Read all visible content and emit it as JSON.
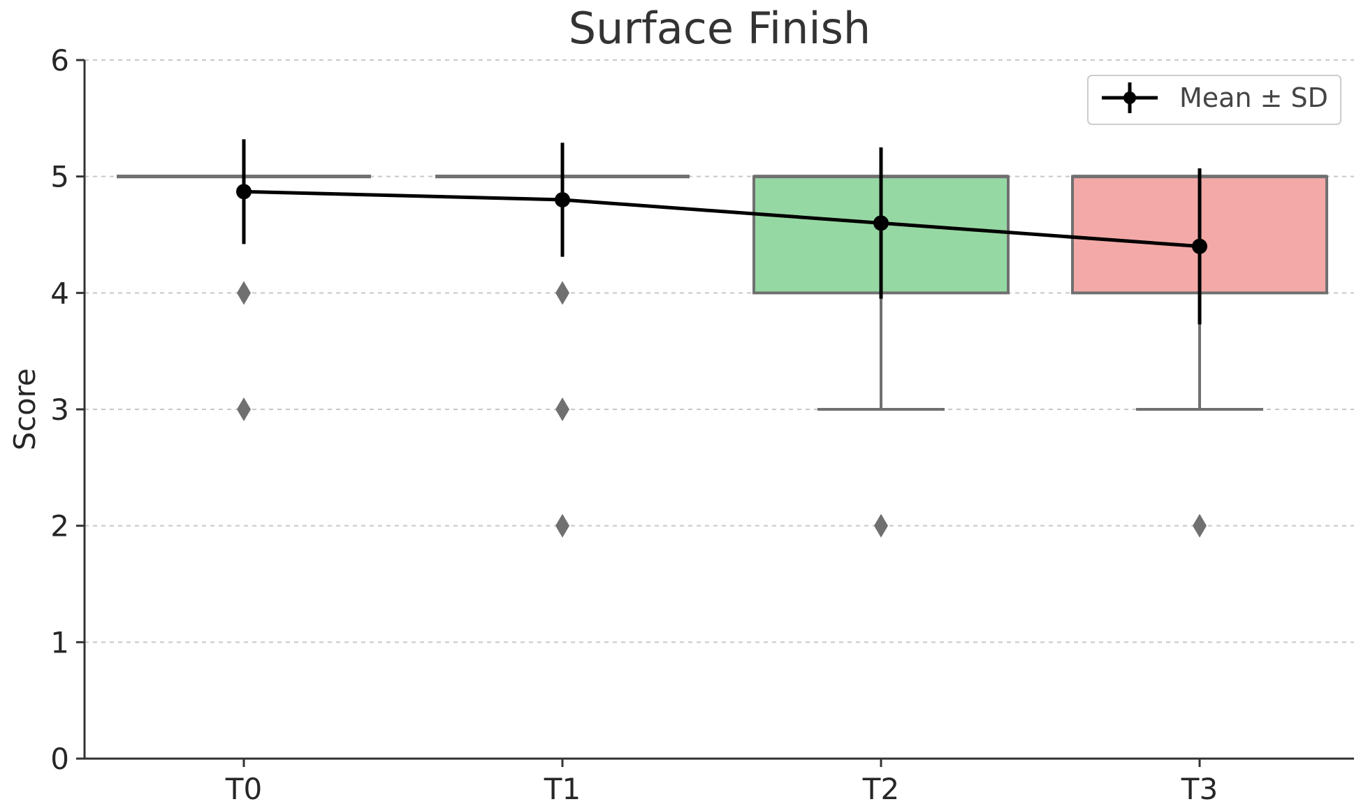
{
  "chart_data": {
    "type": "box",
    "title": "Surface Finish",
    "xlabel": "",
    "ylabel": "Score",
    "ylim": [
      0,
      6
    ],
    "yticks": [
      0,
      1,
      2,
      3,
      4,
      5,
      6
    ],
    "categories": [
      "T0",
      "T1",
      "T2",
      "T3"
    ],
    "grid": true,
    "legend": {
      "position": "top-right",
      "label": "Mean ± SD"
    },
    "boxes": [
      {
        "category": "T0",
        "q1": 5,
        "median": 5,
        "q3": 5,
        "whisker_low": 5,
        "whisker_high": 5,
        "outliers": [
          4,
          3
        ],
        "color": "#9bdaa6"
      },
      {
        "category": "T1",
        "q1": 5,
        "median": 5,
        "q3": 5,
        "whisker_low": 5,
        "whisker_high": 5,
        "outliers": [
          4,
          3,
          2
        ],
        "color": "#f5c27a"
      },
      {
        "category": "T2",
        "q1": 4,
        "median": 5,
        "q3": 5,
        "whisker_low": 3,
        "whisker_high": 5,
        "outliers": [
          2
        ],
        "color": "#96d8a3"
      },
      {
        "category": "T3",
        "q1": 4,
        "median": 5,
        "q3": 5,
        "whisker_low": 3,
        "whisker_high": 5,
        "outliers": [
          2
        ],
        "color": "#f2a9a7"
      }
    ],
    "series": [
      {
        "name": "Mean ± SD",
        "mean": [
          4.87,
          4.8,
          4.6,
          4.4
        ],
        "sd": [
          0.45,
          0.49,
          0.65,
          0.67
        ],
        "color": "#000000"
      }
    ]
  }
}
